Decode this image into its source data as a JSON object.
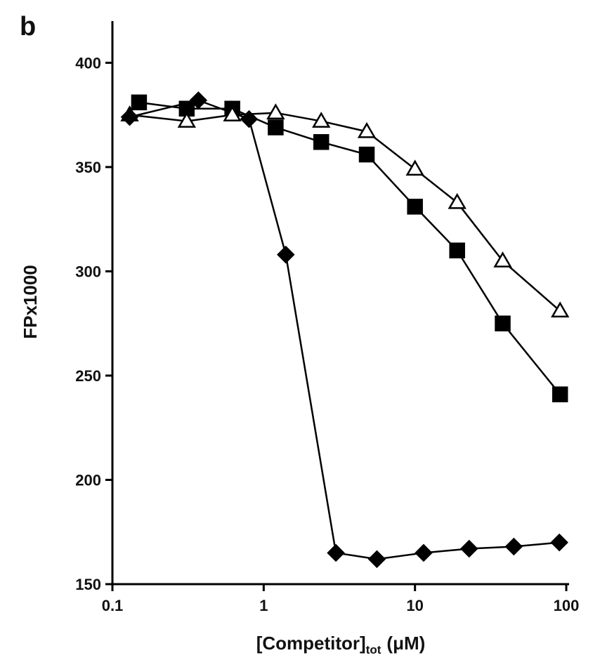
{
  "chart_data": {
    "type": "line",
    "panel_label": "b",
    "ylabel": "FPx1000",
    "xlabel": {
      "main": "[Competitor]",
      "sub": "tot",
      "unit": "(μM)"
    },
    "xscale": "log",
    "xlim": [
      0.1,
      100
    ],
    "xticks": [
      0.1,
      1,
      10,
      100
    ],
    "ylim": [
      150,
      420
    ],
    "yticks": [
      150,
      200,
      250,
      300,
      350,
      400
    ],
    "grid": false,
    "series": [
      {
        "marker": "square",
        "color": "#000000",
        "x": [
          0.15,
          0.31,
          0.62,
          1.2,
          2.4,
          4.8,
          10,
          19,
          38,
          91
        ],
        "values": [
          381,
          378,
          378,
          369,
          362,
          356,
          331,
          310,
          275,
          241
        ]
      },
      {
        "marker": "triangle-open",
        "color": "#000000",
        "x": [
          0.13,
          0.31,
          0.62,
          1.2,
          2.4,
          4.8,
          10,
          19,
          38,
          91
        ],
        "values": [
          375,
          372,
          375,
          376,
          372,
          367,
          349,
          333,
          305,
          281
        ]
      },
      {
        "marker": "diamond",
        "color": "#000000",
        "x": [
          0.13,
          0.37,
          0.8,
          1.4,
          3,
          5.6,
          11.4,
          22.8,
          45,
          90
        ],
        "values": [
          374,
          382,
          373,
          308,
          165,
          162,
          165,
          167,
          168,
          170
        ]
      }
    ]
  }
}
